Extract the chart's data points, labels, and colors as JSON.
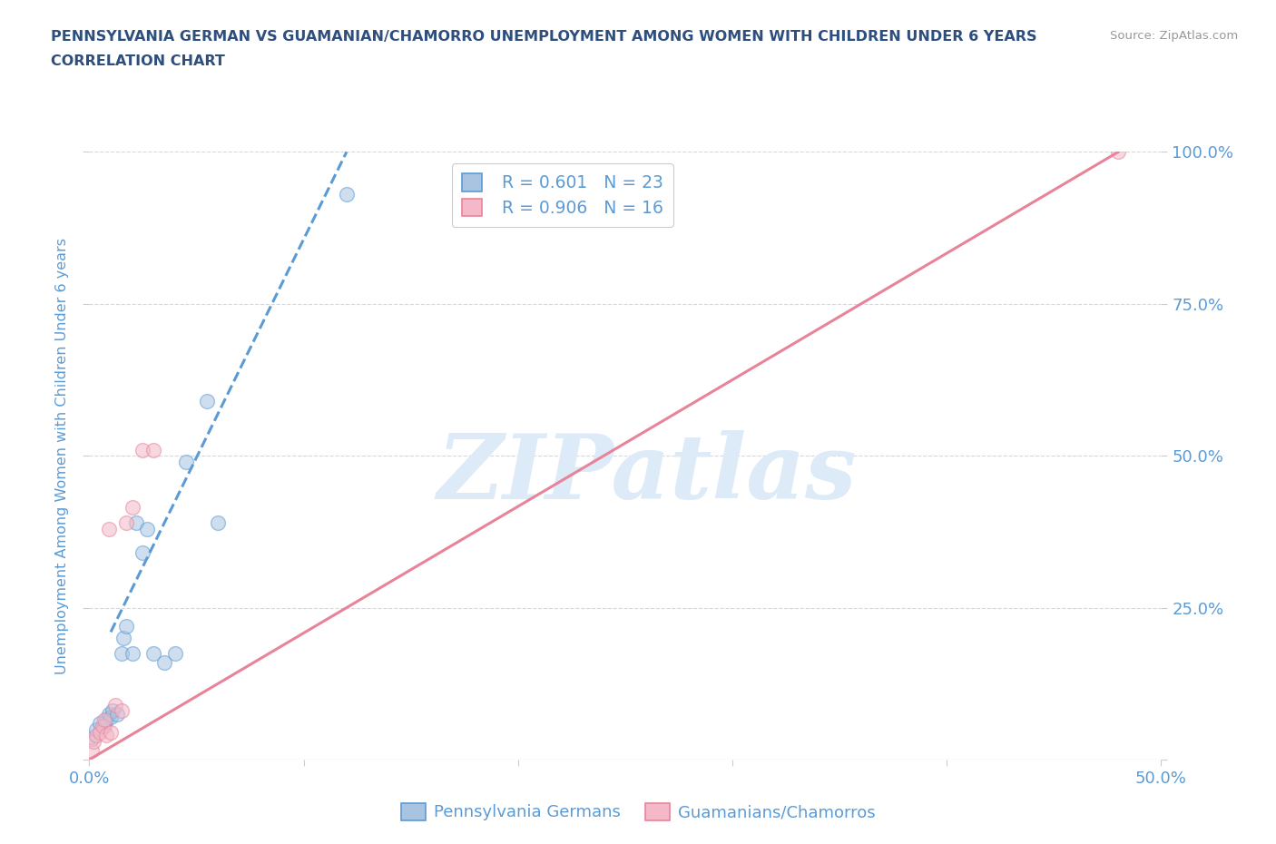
{
  "title_line1": "PENNSYLVANIA GERMAN VS GUAMANIAN/CHAMORRO UNEMPLOYMENT AMONG WOMEN WITH CHILDREN UNDER 6 YEARS",
  "title_line2": "CORRELATION CHART",
  "source": "Source: ZipAtlas.com",
  "ylabel": "Unemployment Among Women with Children Under 6 years",
  "xlim": [
    0,
    0.5
  ],
  "ylim": [
    0,
    1.0
  ],
  "xticks": [
    0.0,
    0.1,
    0.2,
    0.3,
    0.4,
    0.5
  ],
  "yticks": [
    0.0,
    0.25,
    0.5,
    0.75,
    1.0
  ],
  "xtick_labels": [
    "0.0%",
    "",
    "",
    "",
    "",
    "50.0%"
  ],
  "ytick_labels_right": [
    "",
    "25.0%",
    "50.0%",
    "75.0%",
    "100.0%"
  ],
  "blue_R": 0.601,
  "blue_N": 23,
  "pink_R": 0.906,
  "pink_N": 16,
  "blue_scatter_x": [
    0.001,
    0.003,
    0.005,
    0.007,
    0.008,
    0.009,
    0.01,
    0.011,
    0.013,
    0.015,
    0.016,
    0.017,
    0.02,
    0.022,
    0.025,
    0.027,
    0.03,
    0.035,
    0.04,
    0.045,
    0.055,
    0.06,
    0.12
  ],
  "blue_scatter_y": [
    0.035,
    0.05,
    0.06,
    0.055,
    0.065,
    0.075,
    0.07,
    0.08,
    0.075,
    0.175,
    0.2,
    0.22,
    0.175,
    0.39,
    0.34,
    0.38,
    0.175,
    0.16,
    0.175,
    0.49,
    0.59,
    0.39,
    0.93
  ],
  "pink_scatter_x": [
    0.001,
    0.002,
    0.003,
    0.005,
    0.006,
    0.007,
    0.008,
    0.009,
    0.01,
    0.012,
    0.015,
    0.017,
    0.02,
    0.025,
    0.03,
    0.48
  ],
  "pink_scatter_y": [
    0.015,
    0.03,
    0.04,
    0.045,
    0.055,
    0.065,
    0.04,
    0.38,
    0.045,
    0.09,
    0.08,
    0.39,
    0.415,
    0.51,
    0.51,
    1.0
  ],
  "blue_line_x": [
    0.01,
    0.12
  ],
  "blue_line_y": [
    0.21,
    1.0
  ],
  "pink_line_x": [
    0.0,
    0.48
  ],
  "pink_line_y": [
    0.0,
    1.0
  ],
  "blue_color": "#a8c4e0",
  "blue_line_color": "#5b9bd5",
  "pink_color": "#f4b8c8",
  "pink_line_color": "#e8849a",
  "watermark_color": "#ddeaf7",
  "background_color": "#ffffff",
  "grid_color": "#d8d8d8",
  "title_color": "#2e4e7e",
  "axis_label_color": "#5b9bd5",
  "legend_text_dark": "#2e4e7e",
  "legend_text_blue": "#5b9bd5",
  "scatter_size": 130,
  "scatter_alpha": 0.55,
  "scatter_linewidth": 1.0
}
